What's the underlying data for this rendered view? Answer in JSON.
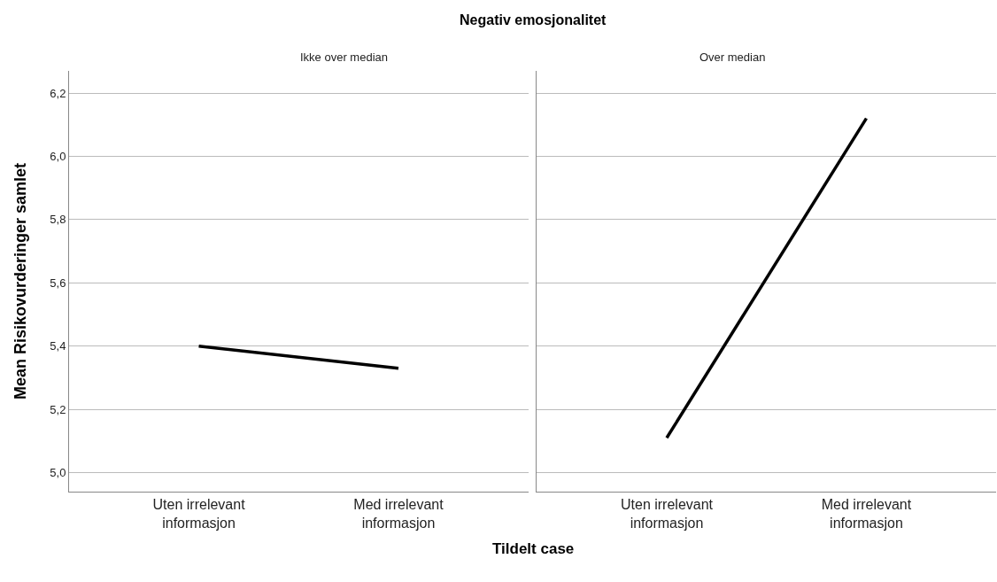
{
  "chart_data": [
    {
      "type": "line",
      "title": "Negativ emosjonalitet",
      "subtitle": "Ikke over median",
      "xlabel": "Tildelt case",
      "ylabel": "Mean Risikovurderinger samlet",
      "categories": [
        "Uten irrelevant\ninformasjon",
        "Med irrelevant\ninformasjon"
      ],
      "series": [
        {
          "color": "#000000",
          "values": [
            5.4,
            5.33
          ]
        }
      ],
      "ylim": [
        4.94,
        6.27
      ],
      "yticks": [
        {
          "value": 5.0,
          "label": "5,0"
        },
        {
          "value": 5.2,
          "label": "5,2"
        },
        {
          "value": 5.4,
          "label": "5,4"
        },
        {
          "value": 5.6,
          "label": "5,6"
        },
        {
          "value": 5.8,
          "label": "5,8"
        },
        {
          "value": 6.0,
          "label": "6,0"
        },
        {
          "value": 6.2,
          "label": "6,2"
        }
      ],
      "grid": "y",
      "marker": "none",
      "line_style": "solid"
    },
    {
      "type": "line",
      "subtitle": "Over median",
      "categories": [
        "Uten irrelevant\ninformasjon",
        "Med irrelevant\ninformasjon"
      ],
      "series": [
        {
          "color": "#000000",
          "values": [
            5.11,
            6.12
          ]
        }
      ],
      "ylim": [
        4.94,
        6.27
      ],
      "yticks": [
        5.0,
        5.2,
        5.4,
        5.6,
        5.8,
        6.0,
        6.2
      ],
      "grid": "y",
      "marker": "none",
      "line_style": "solid",
      "tick_labels": "x"
    }
  ]
}
